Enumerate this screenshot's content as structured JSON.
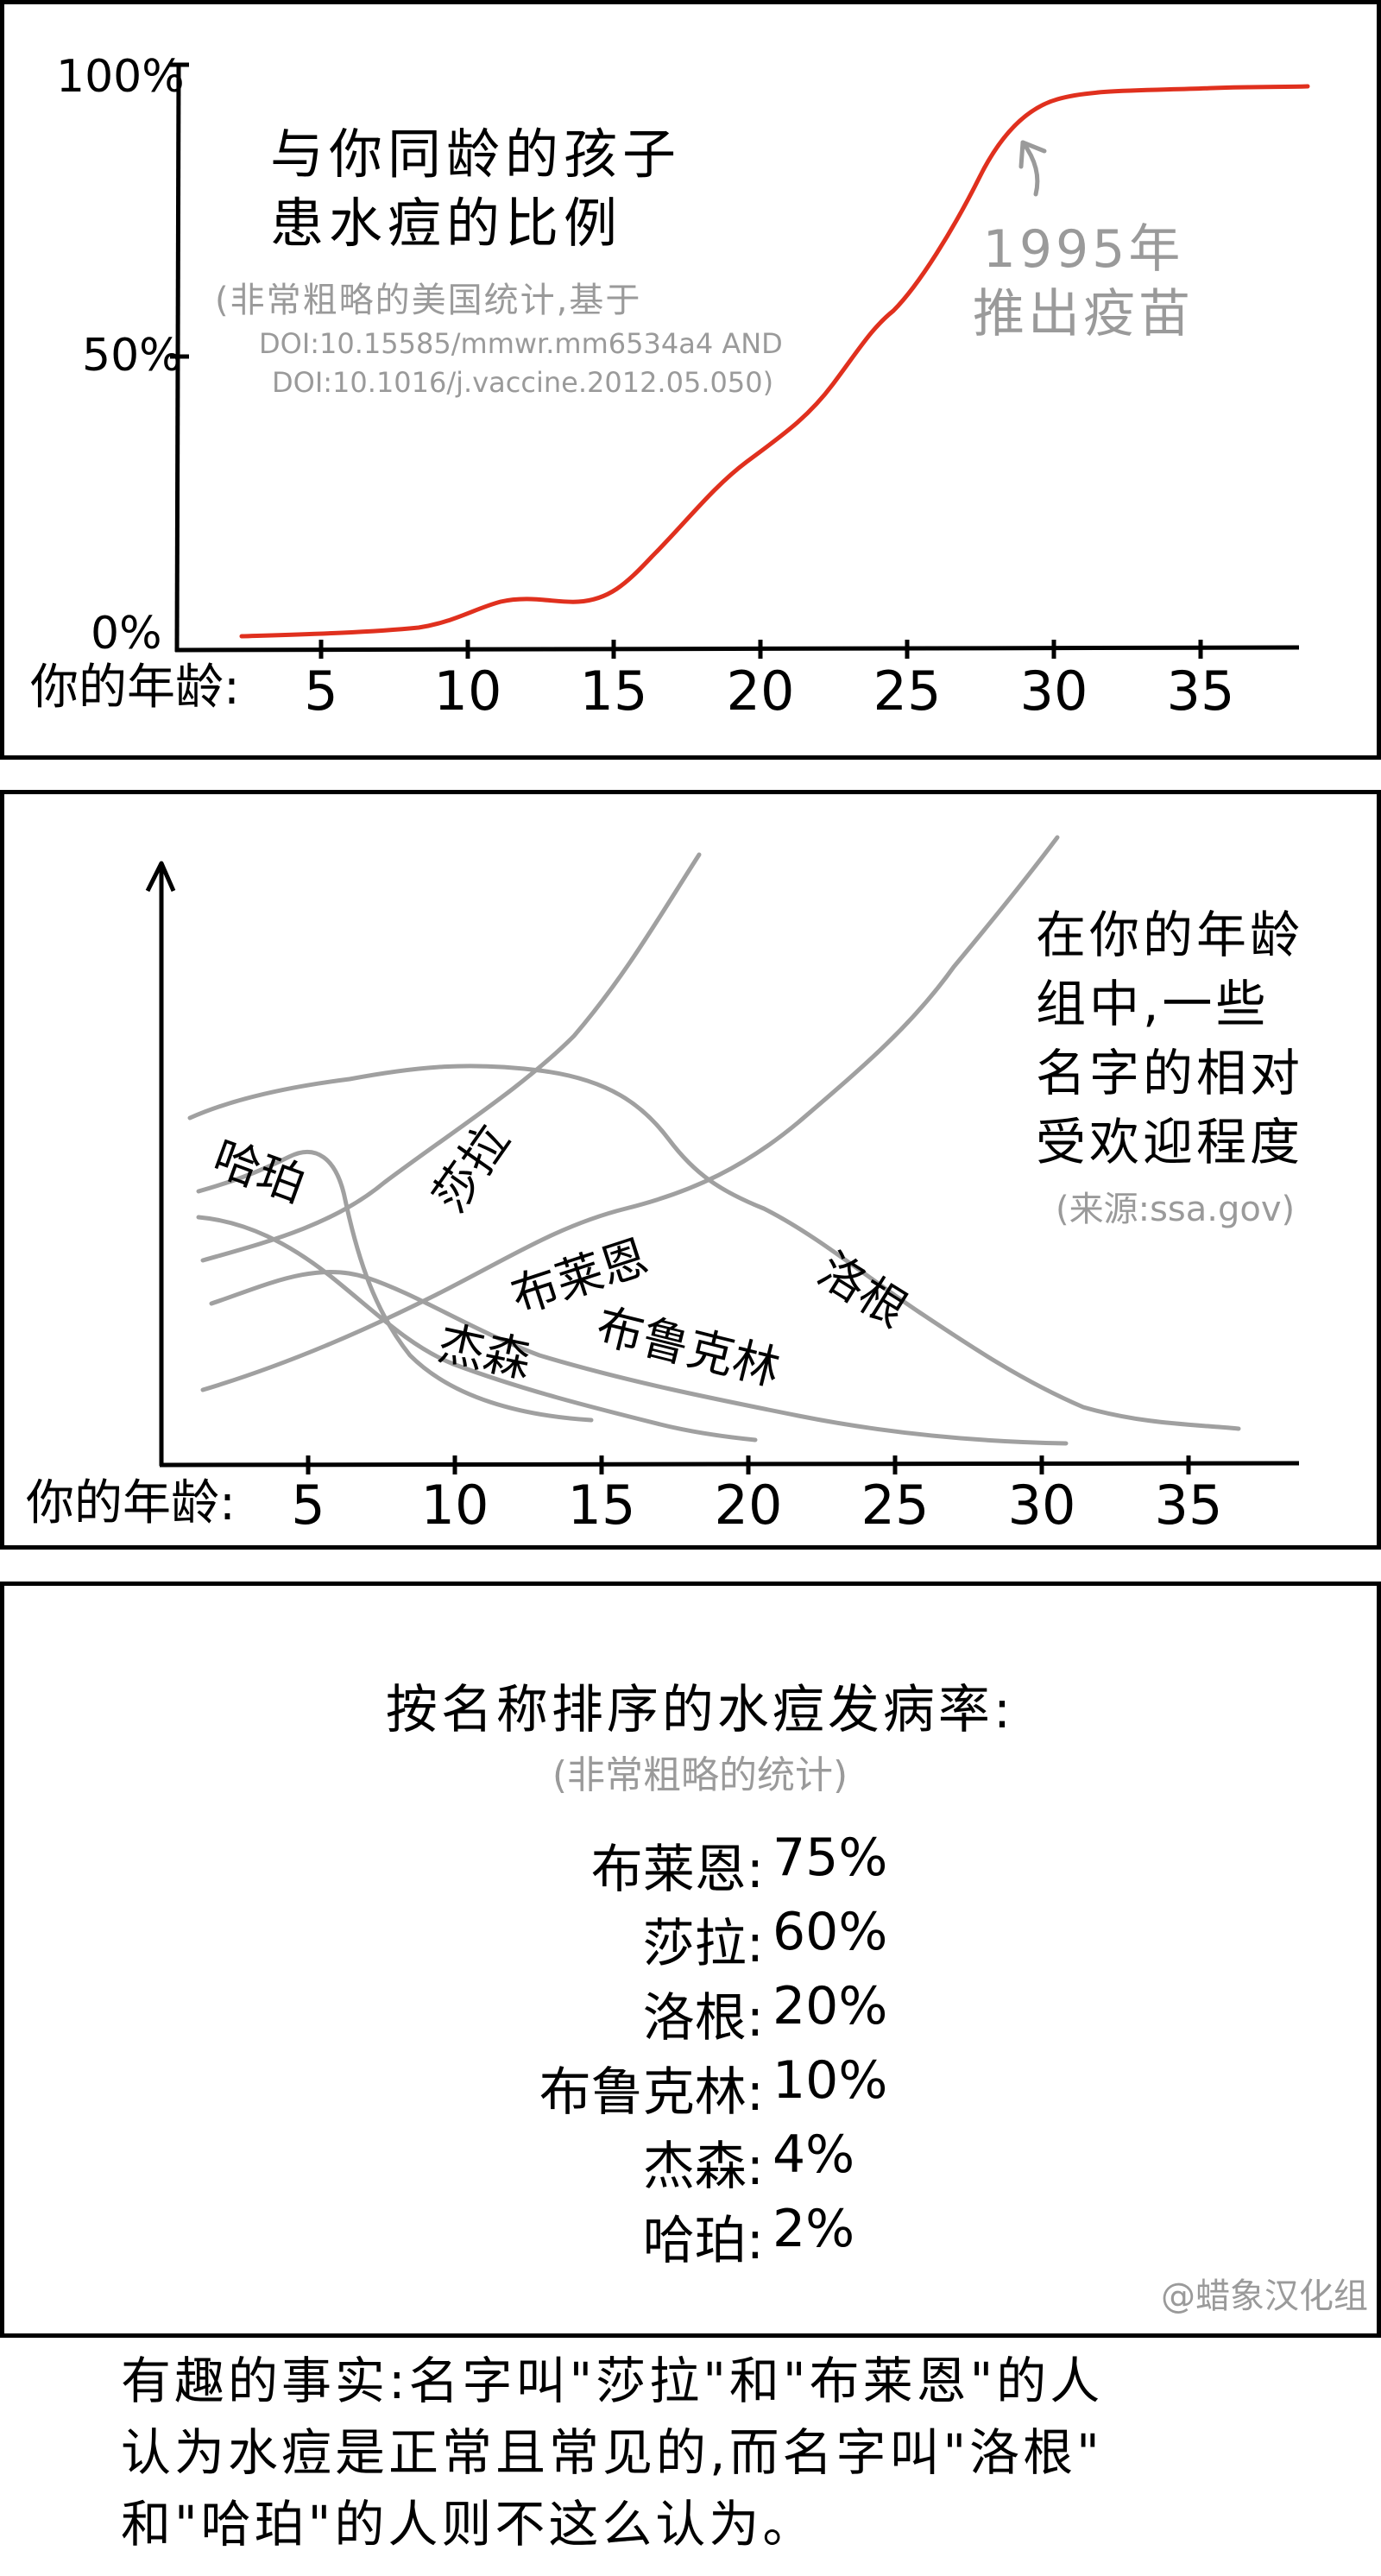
{
  "panel1": {
    "title_line1": "与你同龄的孩子",
    "title_line2": "患水痘的比例",
    "note_line1": "(非常粗略的美国统计,基于",
    "note_line2": "DOI:10.15585/mmwr.mm6534a4 AND",
    "note_line3": "DOI:10.1016/j.vaccine.2012.05.050)",
    "annotation_line1": "1995年",
    "annotation_line2": "推出疫苗",
    "y_ticks": [
      "100%",
      "50%",
      "0%"
    ],
    "x_axis_label": "你的年龄:",
    "x_ticks": [
      "5",
      "10",
      "15",
      "20",
      "25",
      "30",
      "35"
    ],
    "curve_color": "#e0301e"
  },
  "panel2": {
    "title_line1": "在你的年龄",
    "title_line2": "组中,一些",
    "title_line3": "名字的相对",
    "title_line4": "受欢迎程度",
    "source": "(来源:ssa.gov)",
    "x_axis_label": "你的年龄:",
    "x_ticks": [
      "5",
      "10",
      "15",
      "20",
      "25",
      "30",
      "35"
    ],
    "series_labels": [
      "哈珀",
      "莎拉",
      "布莱恩",
      "洛根",
      "杰森",
      "布鲁克林"
    ],
    "curve_color": "#a0a0a0"
  },
  "panel3": {
    "heading": "按名称排序的水痘发病率:",
    "subheading": "(非常粗略的统计)",
    "rows": [
      {
        "name": "布莱恩:",
        "value": "75%"
      },
      {
        "name": "莎拉:",
        "value": "60%"
      },
      {
        "name": "洛根:",
        "value": "20%"
      },
      {
        "name": "布鲁克林:",
        "value": "10%"
      },
      {
        "name": "杰森:",
        "value": "4%"
      },
      {
        "name": "哈珀:",
        "value": "2%"
      }
    ],
    "credit": "@蜡象汉化组"
  },
  "caption": {
    "line1": "有趣的事实:名字叫\"莎拉\"和\"布莱恩\"的人",
    "line2": "认为水痘是正常且常见的,而名字叫\"洛根\"",
    "line3": "和\"哈珀\"的人则不这么认为。"
  }
}
